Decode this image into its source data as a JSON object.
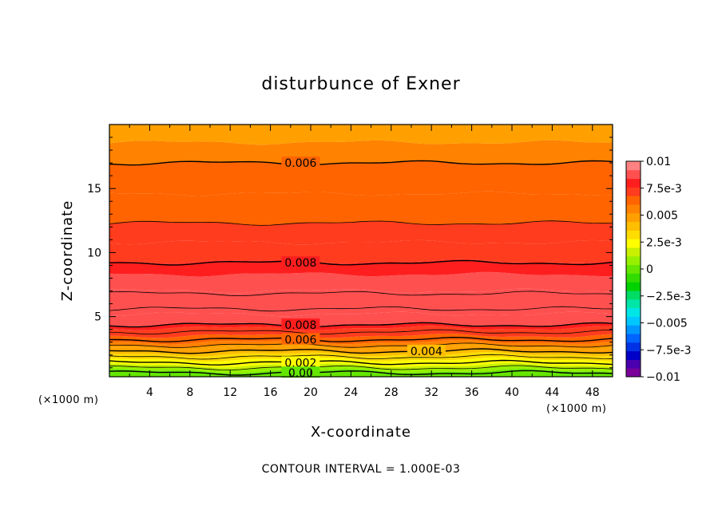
{
  "chart_data": {
    "type": "heatmap",
    "title": "disturbunce of Exner",
    "xlabel": "X-coordinate",
    "ylabel": "Z-coordinate",
    "x_unit_label": "(×1000 m)",
    "xlim": [
      0,
      50
    ],
    "ylim": [
      0.3,
      20
    ],
    "x_ticks": [
      4,
      8,
      12,
      16,
      20,
      24,
      28,
      32,
      36,
      40,
      44,
      48
    ],
    "y_ticks": [
      5,
      10,
      15
    ],
    "colorbar": {
      "ticks": [
        "0.01",
        "7.5e-3",
        "0.005",
        "2.5e-3",
        "0",
        "−2.5e-3",
        "−0.005",
        "−7.5e-3",
        "−0.01"
      ],
      "min": -0.01,
      "max": 0.01,
      "colors": [
        "#7a0099",
        "#4b00b0",
        "#0000c8",
        "#0032e6",
        "#0064ff",
        "#0096ff",
        "#00c8ff",
        "#00e6e6",
        "#00e6a8",
        "#00dc64",
        "#00d200",
        "#32dc00",
        "#64e600",
        "#96f000",
        "#c8f000",
        "#ffff00",
        "#ffdc00",
        "#ffbe00",
        "#ffa000",
        "#ff8200",
        "#ff6400",
        "#ff3c1e",
        "#ff1e1e",
        "#ff5050",
        "#ff8282"
      ]
    },
    "contour_labels": [
      {
        "text": "0.006",
        "x": 19,
        "y": 17.0
      },
      {
        "text": "0.008",
        "x": 19,
        "y": 9.2
      },
      {
        "text": "0.008",
        "x": 19,
        "y": 4.35
      },
      {
        "text": "0.006",
        "x": 19,
        "y": 3.2
      },
      {
        "text": "0.004",
        "x": 31.5,
        "y": 2.3
      },
      {
        "text": "0.002",
        "x": 19,
        "y": 1.4
      },
      {
        "text": "0.00",
        "x": 19,
        "y": 0.6
      }
    ],
    "contour_lines": [
      {
        "level": 0.006,
        "y": 17.0
      },
      {
        "level": 0.007,
        "y": 12.3
      },
      {
        "level": 0.008,
        "y": 9.2
      },
      {
        "level": 0.009,
        "y": 6.8
      },
      {
        "level": 0.009,
        "y": 5.6
      },
      {
        "level": 0.008,
        "y": 4.35
      },
      {
        "level": 0.007,
        "y": 3.8
      },
      {
        "level": 0.006,
        "y": 3.2
      },
      {
        "level": 0.005,
        "y": 2.75
      },
      {
        "level": 0.004,
        "y": 2.3
      },
      {
        "level": 0.003,
        "y": 1.85
      },
      {
        "level": 0.002,
        "y": 1.4
      },
      {
        "level": 0.001,
        "y": 1.0
      },
      {
        "level": 0.0,
        "y": 0.6
      }
    ],
    "field_bands": [
      {
        "value": 0.0,
        "y_top": 0.75
      },
      {
        "value": 0.001,
        "y_top": 1.0
      },
      {
        "value": 0.0015,
        "y_top": 1.2
      },
      {
        "value": 0.002,
        "y_top": 1.4
      },
      {
        "value": 0.0025,
        "y_top": 1.65
      },
      {
        "value": 0.003,
        "y_top": 1.85
      },
      {
        "value": 0.0035,
        "y_top": 2.05
      },
      {
        "value": 0.004,
        "y_top": 2.3
      },
      {
        "value": 0.0045,
        "y_top": 2.55
      },
      {
        "value": 0.005,
        "y_top": 2.75
      },
      {
        "value": 0.0055,
        "y_top": 3.0
      },
      {
        "value": 0.006,
        "y_top": 3.2
      },
      {
        "value": 0.0065,
        "y_top": 3.5
      },
      {
        "value": 0.007,
        "y_top": 3.8
      },
      {
        "value": 0.0075,
        "y_top": 4.1
      },
      {
        "value": 0.008,
        "y_top": 4.4
      },
      {
        "value": 0.0085,
        "y_top": 5.2
      },
      {
        "value": 0.009,
        "y_top": 7.0
      },
      {
        "value": 0.0085,
        "y_top": 8.3
      },
      {
        "value": 0.008,
        "y_top": 9.3
      },
      {
        "value": 0.0075,
        "y_top": 10.8
      },
      {
        "value": 0.007,
        "y_top": 12.3
      },
      {
        "value": 0.0065,
        "y_top": 14.6
      },
      {
        "value": 0.006,
        "y_top": 17.0
      },
      {
        "value": 0.0055,
        "y_top": 18.6
      },
      {
        "value": 0.005,
        "y_top": 20.0
      }
    ]
  },
  "footer": "CONTOUR INTERVAL = 1.000E-03"
}
